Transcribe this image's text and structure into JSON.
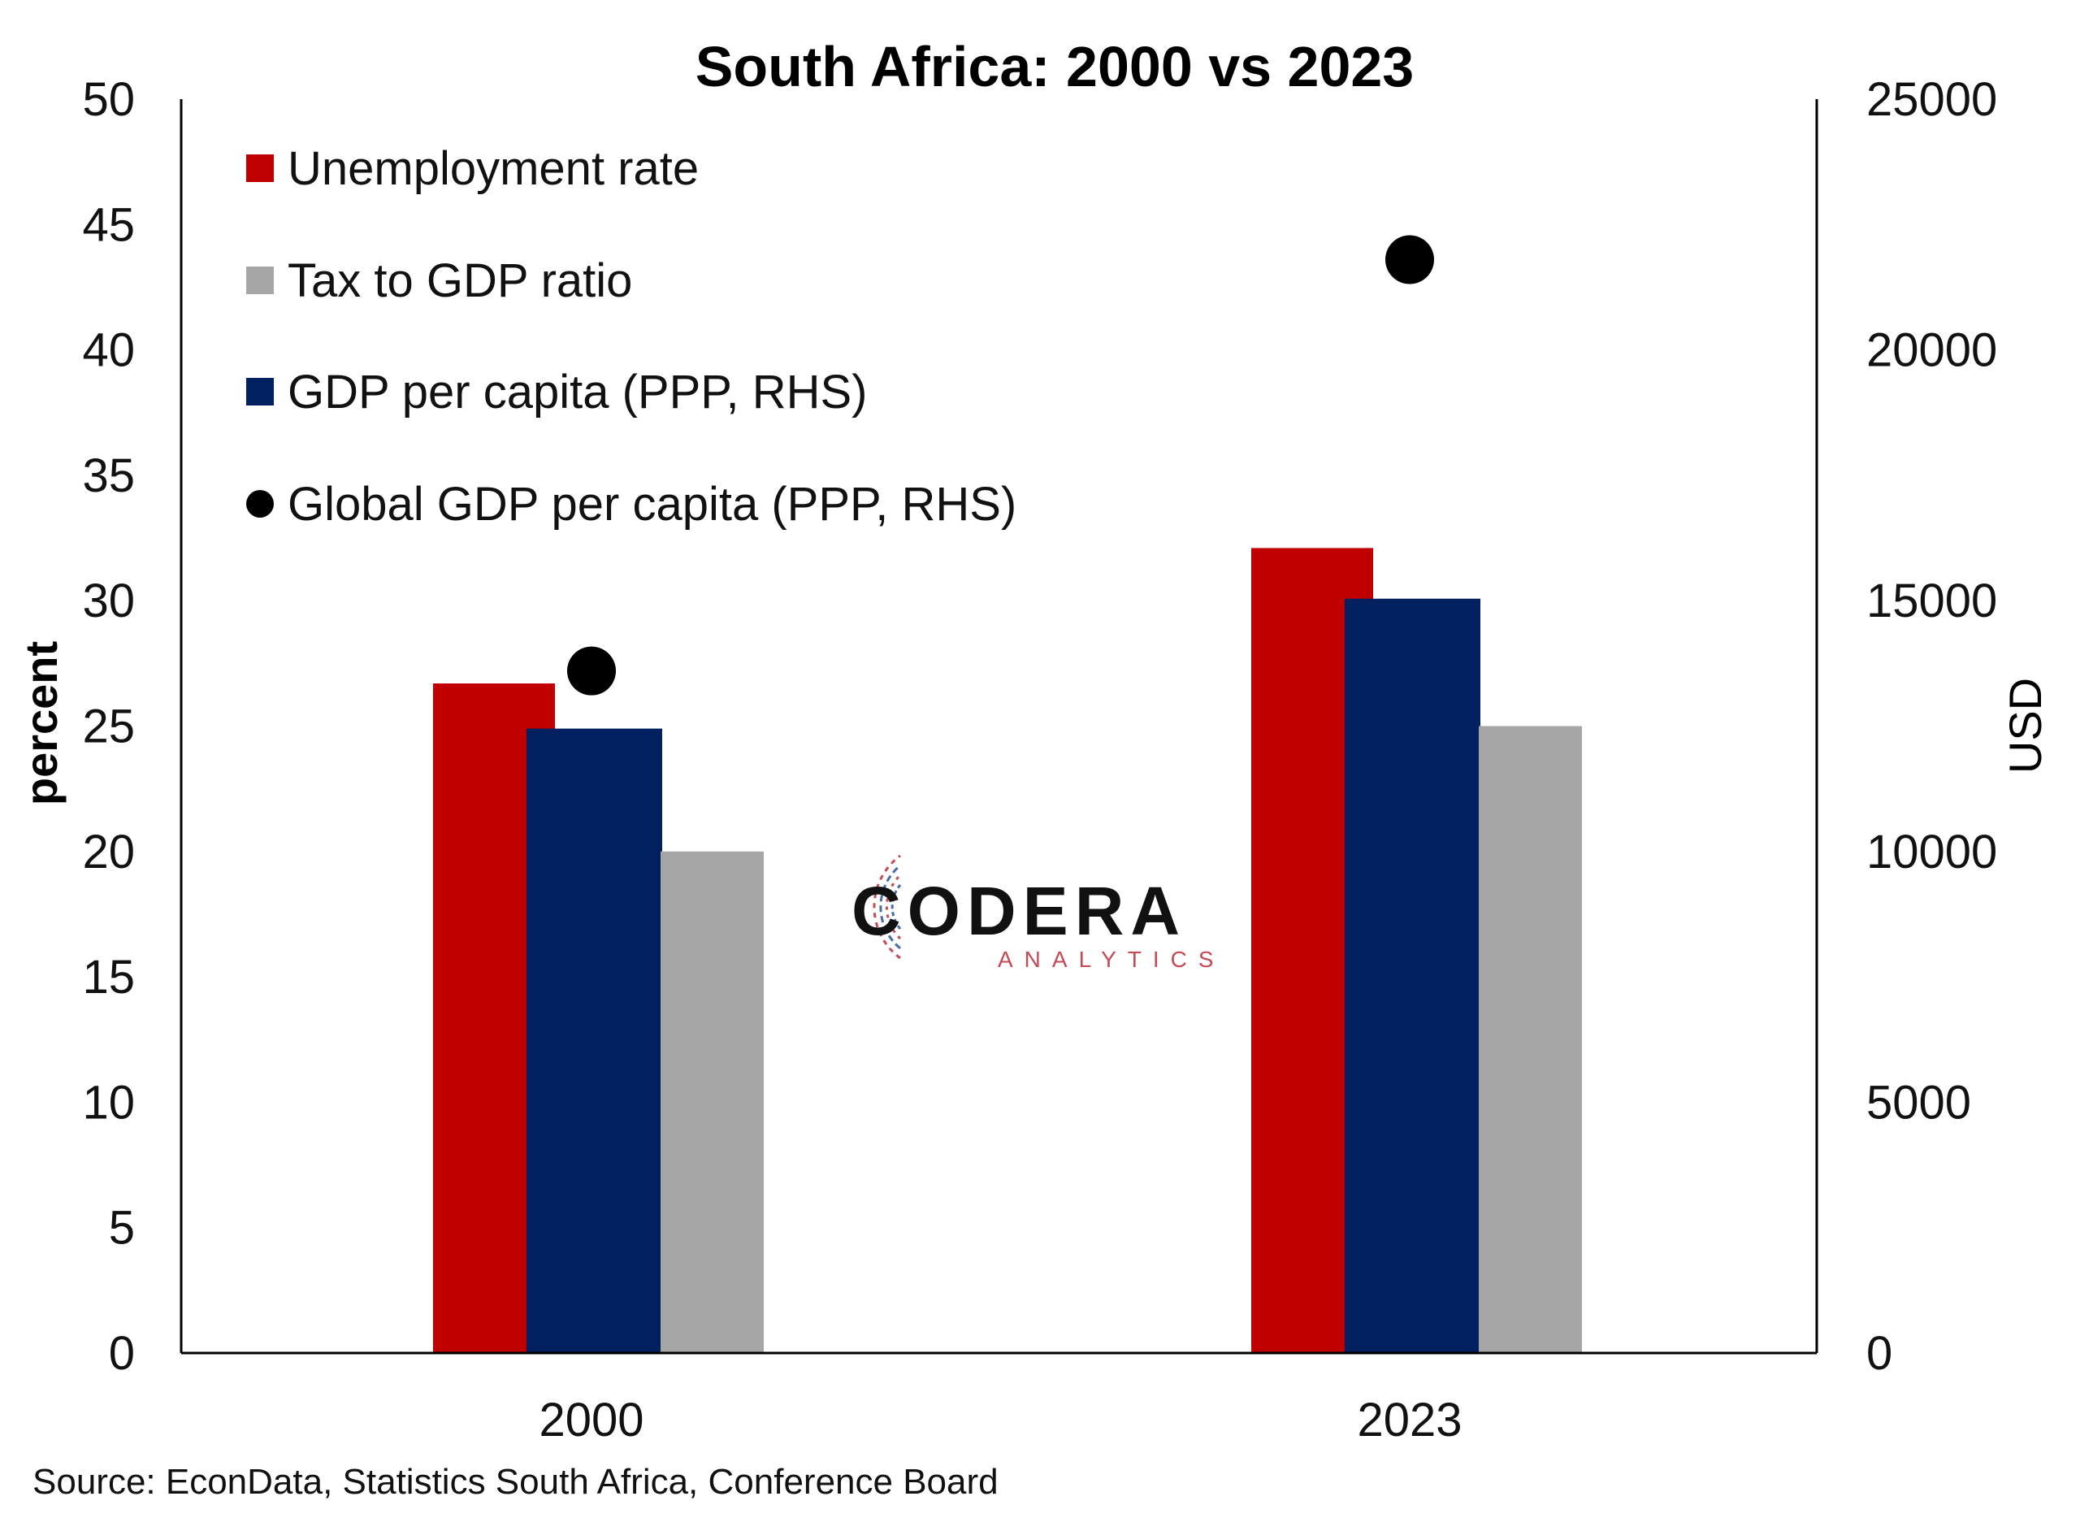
{
  "chart_data": {
    "type": "bar",
    "title": "South Africa: 2000 vs 2023",
    "categories": [
      "2000",
      "2023"
    ],
    "y_left": {
      "label": "percent",
      "range": [
        0,
        50
      ],
      "ticks": [
        "0",
        "5",
        "10",
        "15",
        "20",
        "25",
        "30",
        "35",
        "40",
        "45",
        "50"
      ]
    },
    "y_right": {
      "label": "USD",
      "range": [
        0,
        25000
      ],
      "ticks": [
        "0",
        "5000",
        "10000",
        "15000",
        "20000",
        "25000"
      ]
    },
    "series": [
      {
        "name": "Unemployment rate",
        "type": "bar",
        "axis": "left",
        "color": "#c00000",
        "values": [
          26.7,
          32.1
        ]
      },
      {
        "name": "GDP per capita (PPP, RHS)",
        "type": "bar",
        "axis": "right",
        "color": "#002060",
        "values": [
          12450,
          15040
        ]
      },
      {
        "name": "Tax to GDP ratio",
        "type": "bar",
        "axis": "left",
        "color": "#a6a6a6",
        "values": [
          20.0,
          25.0
        ]
      },
      {
        "name": "Global GDP per capita (PPP, RHS)",
        "type": "scatter",
        "axis": "right",
        "color": "#000000",
        "values": [
          13600,
          21800
        ]
      }
    ],
    "legend": {
      "placement": "top-left",
      "entries": [
        {
          "label": "Unemployment rate",
          "marker": "square",
          "color": "#c00000"
        },
        {
          "label": "Tax to GDP ratio",
          "marker": "square",
          "color": "#a6a6a6"
        },
        {
          "label": "GDP per capita (PPP, RHS)",
          "marker": "square",
          "color": "#002060"
        },
        {
          "label": "Global GDP per capita (PPP, RHS)",
          "marker": "circle",
          "color": "#000000"
        }
      ]
    },
    "grid": false,
    "source": "Source: EconData, Statistics South Africa, Conference Board"
  },
  "logo": {
    "name": "CODERA",
    "tagline": "ANALYTICS"
  }
}
